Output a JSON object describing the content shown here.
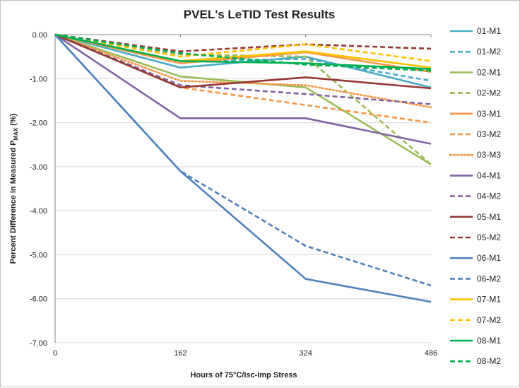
{
  "chart_data": {
    "type": "line",
    "title": "PVEL's LeTID Test Results",
    "xlabel": "Hours of 75°C/Isc-Imp  Stress",
    "ylabel_main": "Percent  Difference  in Measured P",
    "ylabel_sub": "MAX",
    "ylabel_tail": " (%)",
    "x": [
      0,
      162,
      324,
      486
    ],
    "x_tick_labels": [
      "0",
      "162",
      "324",
      "486"
    ],
    "ylim": [
      -7,
      0
    ],
    "y_ticks": [
      0,
      -1,
      -2,
      -3,
      -4,
      -5,
      -6,
      -7
    ],
    "y_tick_labels": [
      "0.00",
      "-1.00",
      "-2.00",
      "-3.00",
      "-4.00",
      "-5.00",
      "-6.00",
      "-7.00"
    ],
    "grid": "horizontal",
    "legend_position": "right",
    "series": [
      {
        "name": "01-M1",
        "color": "#4bacc6",
        "dash": "solid",
        "values": [
          0,
          -0.75,
          -0.5,
          -1.2
        ]
      },
      {
        "name": "01-M2",
        "color": "#4bacc6",
        "dash": "dashed",
        "values": [
          0,
          -0.6,
          -0.55,
          -1.05
        ]
      },
      {
        "name": "02-M1",
        "color": "#9bbb59",
        "dash": "solid",
        "values": [
          0,
          -0.95,
          -1.2,
          -2.95
        ]
      },
      {
        "name": "02-M2",
        "color": "#9bbb59",
        "dash": "dashed",
        "values": [
          0,
          -0.45,
          -0.5,
          -2.95
        ]
      },
      {
        "name": "03-M1",
        "color": "#f79646",
        "dash": "solid",
        "values": [
          0,
          -0.65,
          -0.4,
          -0.85
        ]
      },
      {
        "name": "03-M2",
        "color": "#f79646",
        "dash": "dashed",
        "values": [
          0,
          -1.2,
          -1.6,
          -2.0
        ]
      },
      {
        "name": "03-M3",
        "color": "#f79646",
        "dash": "dotted",
        "values": [
          0,
          -1.05,
          -1.15,
          -1.65
        ]
      },
      {
        "name": "04-M1",
        "color": "#8064a2",
        "dash": "solid",
        "values": [
          0,
          -1.9,
          -1.9,
          -2.48
        ]
      },
      {
        "name": "04-M2",
        "color": "#8064a2",
        "dash": "dashed",
        "values": [
          0,
          -1.15,
          -1.35,
          -1.58
        ]
      },
      {
        "name": "05-M1",
        "color": "#953735",
        "dash": "solid",
        "values": [
          0,
          -1.2,
          -0.97,
          -1.22
        ]
      },
      {
        "name": "05-M2",
        "color": "#953735",
        "dash": "dashed",
        "values": [
          0,
          -0.38,
          -0.22,
          -0.32
        ]
      },
      {
        "name": "06-M1",
        "color": "#4f81bd",
        "dash": "solid",
        "values": [
          0,
          -3.1,
          -5.55,
          -6.07
        ]
      },
      {
        "name": "06-M2",
        "color": "#4f81bd",
        "dash": "dashed",
        "values": [
          0,
          -3.1,
          -4.8,
          -5.7
        ]
      },
      {
        "name": "07-M1",
        "color": "#ffc000",
        "dash": "solid",
        "values": [
          0,
          -0.6,
          -0.38,
          -0.75
        ]
      },
      {
        "name": "07-M2",
        "color": "#ffc000",
        "dash": "dashed",
        "values": [
          0,
          -0.5,
          -0.22,
          -0.6
        ]
      },
      {
        "name": "08-M1",
        "color": "#00b050",
        "dash": "solid",
        "values": [
          0,
          -0.6,
          -0.65,
          -0.78
        ]
      },
      {
        "name": "08-M2",
        "color": "#00b050",
        "dash": "dashed",
        "values": [
          0,
          -0.42,
          -0.68,
          -0.82
        ]
      }
    ]
  }
}
